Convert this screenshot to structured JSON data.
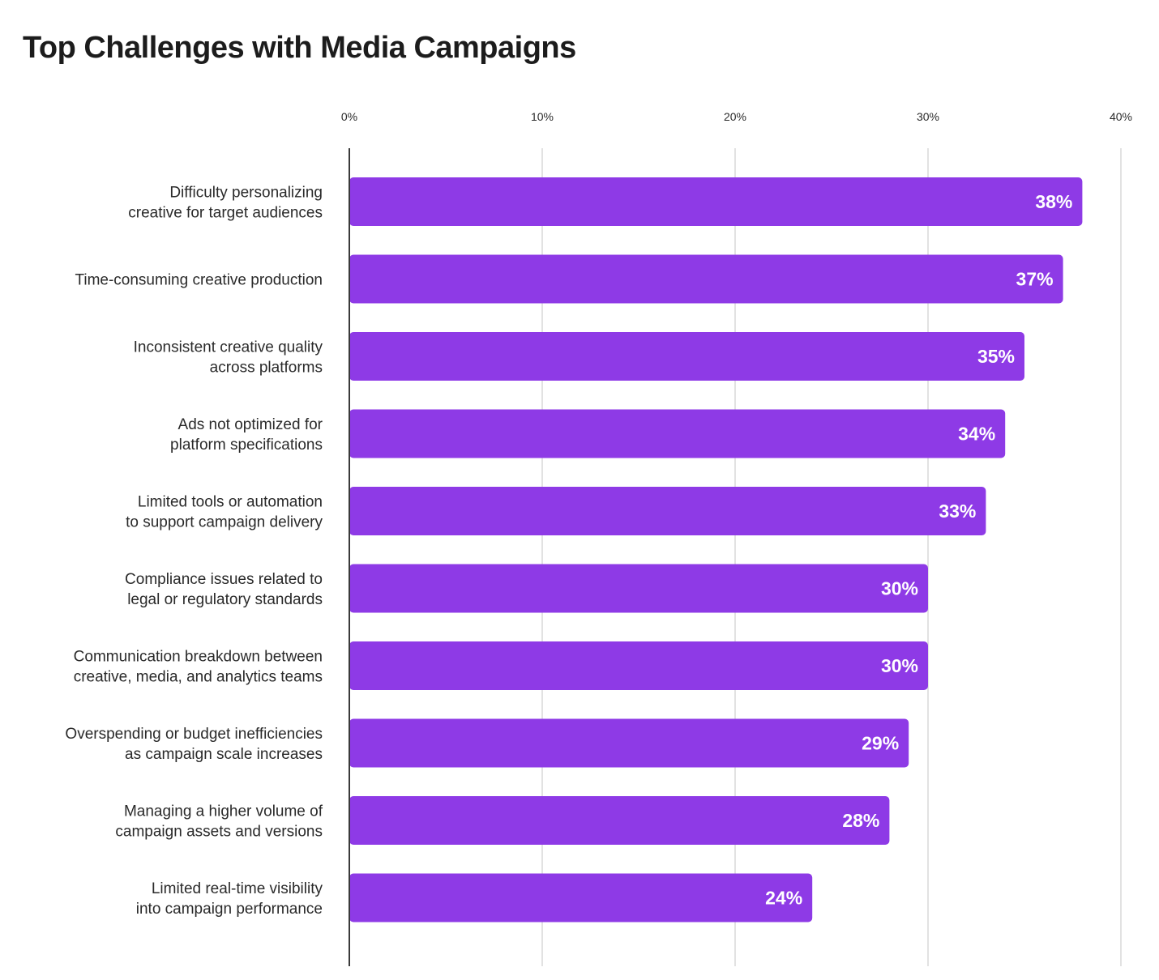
{
  "title": "Top Challenges with Media Campaigns",
  "chart_data": {
    "type": "bar",
    "orientation": "horizontal",
    "title": "Top Challenges with Media Campaigns",
    "xlabel": "",
    "ylabel": "",
    "xlim": [
      0,
      40
    ],
    "xticks": [
      0,
      10,
      20,
      30,
      40
    ],
    "xtick_labels": [
      "0%",
      "10%",
      "20%",
      "30%",
      "40%"
    ],
    "tick_position": "top",
    "grid": true,
    "bar_color": "#8E3AE6",
    "categories": [
      [
        "Difficulty personalizing",
        "creative for target audiences"
      ],
      [
        "Time-consuming creative production"
      ],
      [
        "Inconsistent creative quality",
        "across platforms"
      ],
      [
        "Ads not optimized for",
        "platform specifications"
      ],
      [
        "Limited tools or automation",
        "to support campaign delivery"
      ],
      [
        "Compliance issues related to",
        "legal or regulatory standards"
      ],
      [
        "Communication breakdown between",
        "creative, media, and analytics teams"
      ],
      [
        "Overspending or budget inefficiencies",
        "as campaign scale increases"
      ],
      [
        "Managing a higher volume of",
        "campaign assets and versions"
      ],
      [
        "Limited real-time visibility",
        "into campaign performance"
      ]
    ],
    "values": [
      38,
      37,
      35,
      34,
      33,
      30,
      30,
      29,
      28,
      24
    ],
    "value_labels": [
      "38%",
      "37%",
      "35%",
      "34%",
      "33%",
      "30%",
      "30%",
      "29%",
      "28%",
      "24%"
    ]
  }
}
